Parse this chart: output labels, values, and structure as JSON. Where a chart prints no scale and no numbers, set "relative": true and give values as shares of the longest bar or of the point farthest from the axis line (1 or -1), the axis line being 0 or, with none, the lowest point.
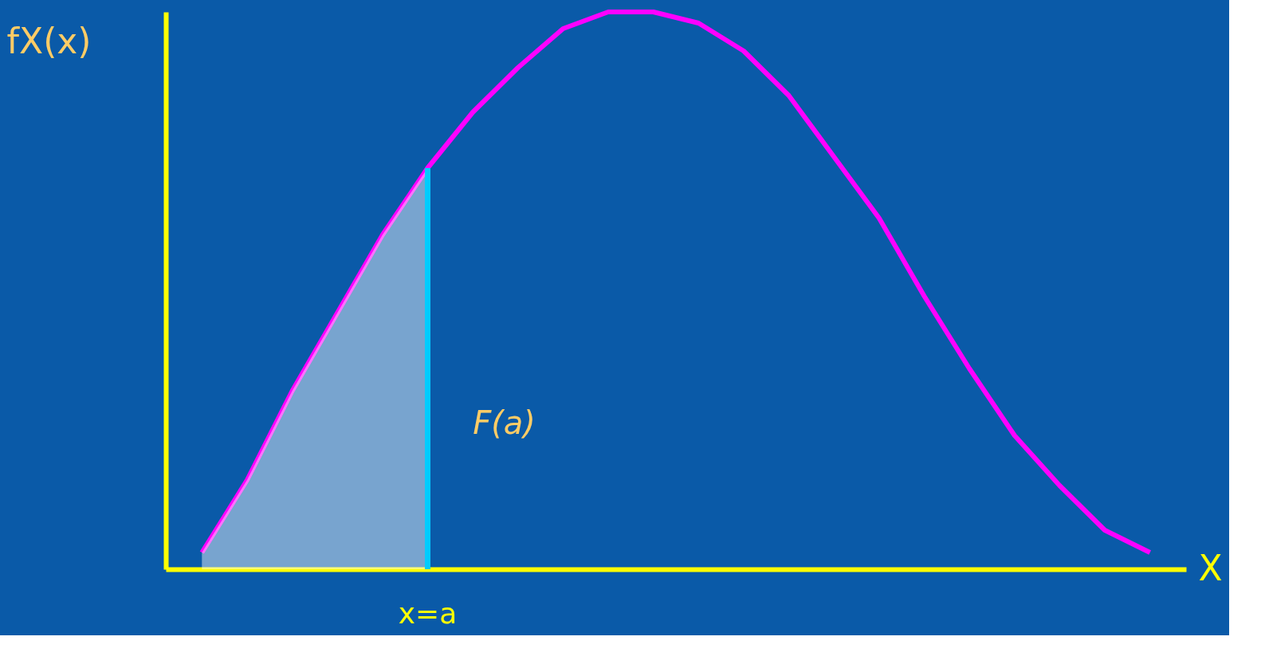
{
  "chart_data": {
    "type": "line",
    "relative": true,
    "xlabel": "X",
    "ylabel": "fX(x)",
    "categories": [
      null,
      null,
      null,
      null,
      null,
      null,
      null,
      null,
      null,
      null,
      null,
      null,
      null,
      null,
      null,
      null,
      null,
      null,
      null,
      null,
      null,
      null
    ],
    "series": [
      {
        "color": "#ff00ff",
        "values": [
          0.03,
          0.16,
          0.32,
          0.46,
          0.6,
          0.72,
          0.82,
          0.9,
          0.97,
          1.0,
          1.0,
          0.98,
          0.93,
          0.85,
          0.74,
          0.63,
          0.49,
          0.36,
          0.24,
          0.15,
          0.07,
          0.03
        ]
      },
      {
        "type": "area",
        "color": "#ffffff",
        "values": [
          0.03,
          0.16,
          0.32,
          0.46,
          0.6,
          0.72,
          null,
          null,
          null,
          null,
          null,
          null,
          null,
          null,
          null,
          null,
          null,
          null,
          null,
          null,
          null,
          null
        ]
      }
    ],
    "annotations": [
      "F(a)",
      "x=a"
    ],
    "grid": false
  }
}
